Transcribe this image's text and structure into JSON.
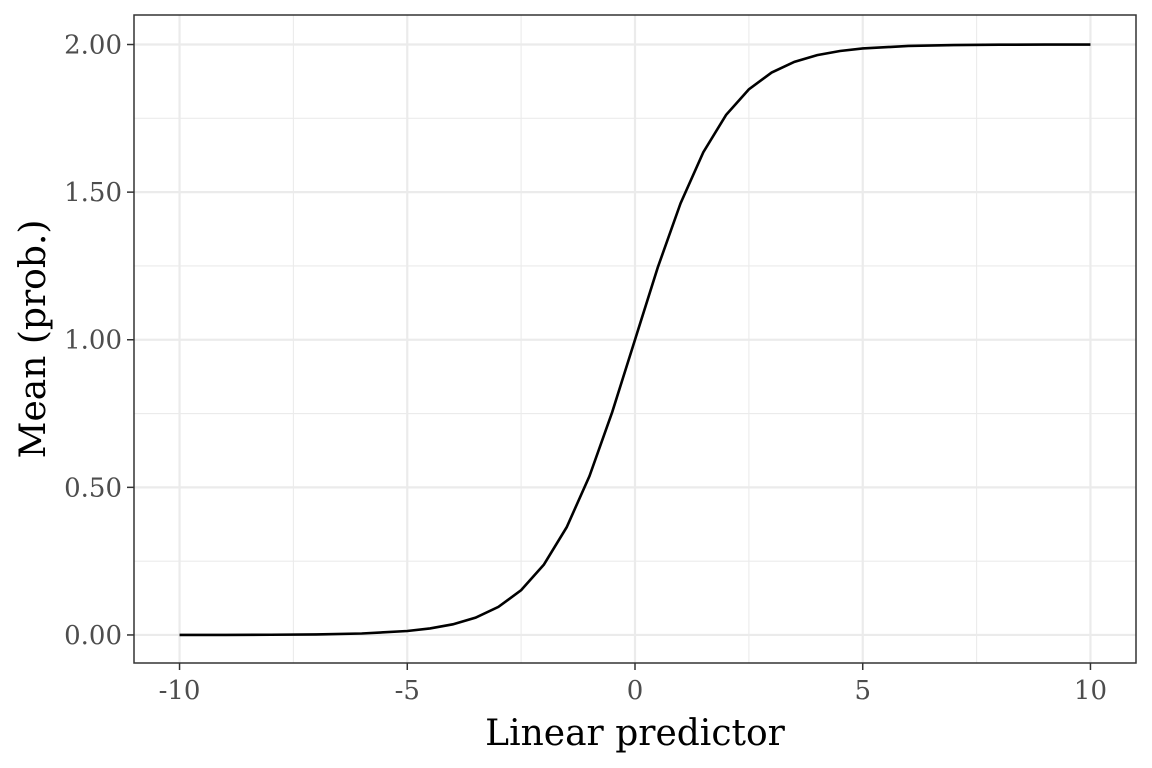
{
  "chart_data": {
    "type": "line",
    "xlabel": "Linear predictor",
    "ylabel": "Mean (prob.)",
    "xlim": [
      -11,
      11
    ],
    "ylim": [
      -0.095,
      2.1
    ],
    "x_ticks": [
      -10,
      -5,
      0,
      5,
      10
    ],
    "x_tick_labels": [
      "-10",
      "-5",
      "0",
      "5",
      "10"
    ],
    "y_ticks": [
      0,
      0.5,
      1,
      1.5,
      2
    ],
    "y_tick_labels": [
      "0.00",
      "0.50",
      "1.00",
      "1.50",
      "2.00"
    ],
    "x_minor": [
      -7.5,
      -2.5,
      2.5,
      7.5
    ],
    "y_minor": [
      0.25,
      0.75,
      1.25,
      1.75
    ],
    "grid": true,
    "series": [
      {
        "color": "#000000",
        "x": [
          -10,
          -9,
          -8,
          -7,
          -6,
          -5,
          -4.5,
          -4,
          -3.5,
          -3,
          -2.5,
          -2,
          -1.5,
          -1,
          -0.5,
          0,
          0.5,
          1,
          1.5,
          2,
          2.5,
          3,
          3.5,
          4,
          4.5,
          5,
          6,
          7,
          8,
          9,
          10
        ],
        "y": [
          0.0001,
          0.0002,
          0.0007,
          0.0018,
          0.0049,
          0.0134,
          0.022,
          0.036,
          0.0587,
          0.0949,
          0.1518,
          0.2384,
          0.3649,
          0.5379,
          0.7551,
          1.0,
          1.2449,
          1.4621,
          1.6351,
          1.7616,
          1.8482,
          1.9051,
          1.9413,
          1.964,
          1.978,
          1.9866,
          1.9951,
          1.9982,
          1.9993,
          1.9998,
          1.9999
        ]
      }
    ]
  }
}
